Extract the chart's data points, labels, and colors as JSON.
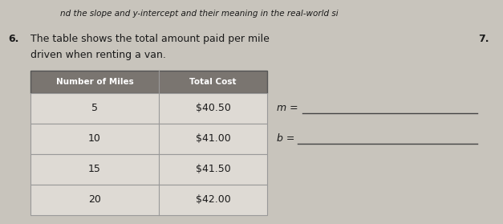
{
  "background_color": "#c8c4bc",
  "top_text": "nd the slope and y-intercept and their meaning in the real-world si",
  "question_number": "6.",
  "question_text_line1": "The table shows the total amount paid per mile",
  "question_text_line2": "driven when renting a van.",
  "side_number": "7.",
  "table_header": [
    "Number of Miles",
    "Total Cost"
  ],
  "table_rows": [
    [
      "5",
      "$40.50"
    ],
    [
      "10",
      "$41.00"
    ],
    [
      "15",
      "$41.50"
    ],
    [
      "20",
      "$42.00"
    ]
  ],
  "m_label": "m =",
  "b_label": "b =",
  "header_bg": "#7a7570",
  "header_fg": "#ffffff",
  "table_bg": "#dedad4",
  "row_line_color": "#999999",
  "table_border_color": "#555555",
  "text_color": "#1a1a1a"
}
